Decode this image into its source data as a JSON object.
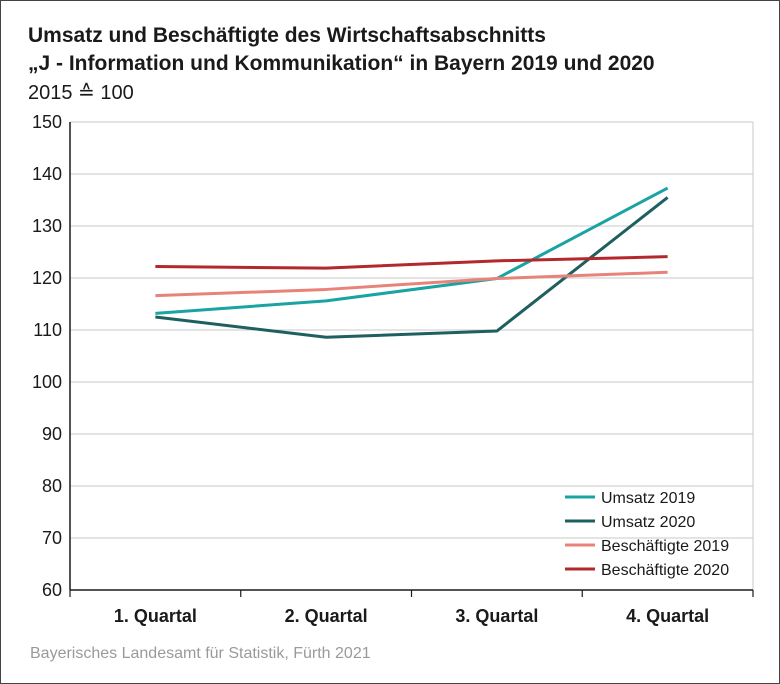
{
  "chart_data": {
    "type": "line",
    "title_line1": "Umsatz und Beschäftigte des Wirtschaftsabschnitts",
    "title_line2": "„J - Information und Kommunikation“ in Bayern 2019 und 2020",
    "subtitle": "2015 ≙ 100",
    "source": "Bayerisches Landesamt für Statistik, Fürth 2021",
    "categories": [
      "1. Quartal",
      "2. Quartal",
      "3. Quartal",
      "4. Quartal"
    ],
    "ylim": [
      60,
      150
    ],
    "yticks": [
      60,
      70,
      80,
      90,
      100,
      110,
      120,
      130,
      140,
      150
    ],
    "grid": true,
    "legend_position": "bottom-right",
    "series": [
      {
        "name": "Umsatz 2019",
        "color": "#1aa3a3",
        "values": [
          113.2,
          115.6,
          119.9,
          137.3
        ]
      },
      {
        "name": "Umsatz 2020",
        "color": "#1e5f5f",
        "values": [
          112.5,
          108.6,
          109.8,
          135.5
        ]
      },
      {
        "name": "Beschäftigte 2019",
        "color": "#e8837a",
        "values": [
          116.6,
          117.8,
          119.9,
          121.1
        ]
      },
      {
        "name": "Beschäftigte 2020",
        "color": "#b3282d",
        "values": [
          122.2,
          121.9,
          123.3,
          124.1
        ]
      }
    ]
  }
}
